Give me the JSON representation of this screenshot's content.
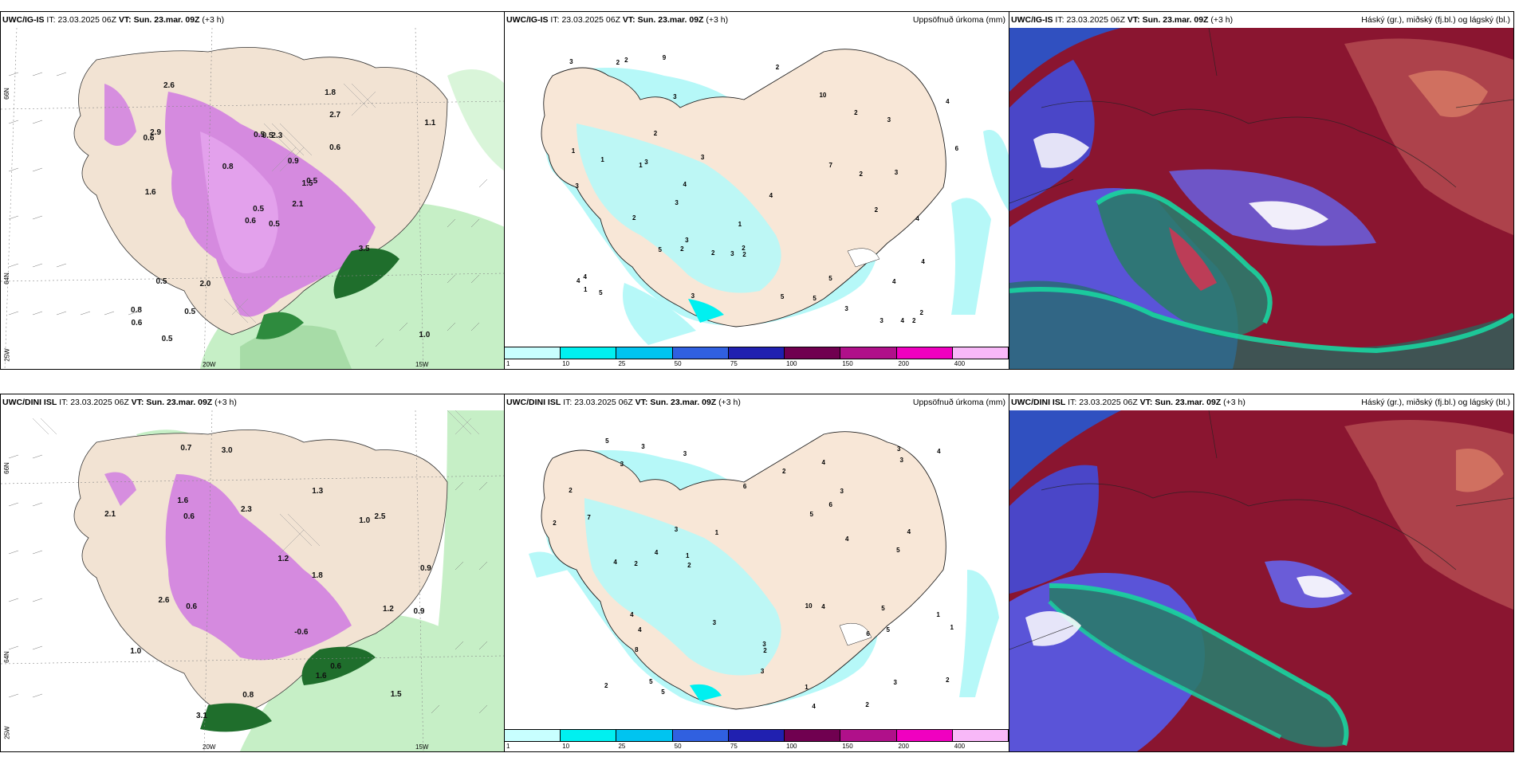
{
  "rows": [
    {
      "id": "top",
      "model": "UWC/IG-IS",
      "it_label": "IT:",
      "it_value": "23.03.2025 06Z",
      "vt_label": "VT:",
      "vt_value": "Sun. 23.mar. 09Z",
      "lead": "(+3 h)"
    },
    {
      "id": "bottom",
      "model": "UWC/DINI ISL",
      "it_label": "IT:",
      "it_value": "23.03.2025 06Z",
      "vt_label": "VT:",
      "vt_value": "Sun. 23.mar. 09Z",
      "lead": "(+3 h)"
    }
  ],
  "precip_panel": {
    "title_right": "Uppsöfnuð úrkoma (mm)"
  },
  "cloud_panel": {
    "title_right": "Háský (gr.), miðský (fj.bl.) og lágský (bl.)"
  },
  "wind_panel": {
    "lat_labels": [
      "66N",
      "64N"
    ],
    "lon_labels": [
      "25W",
      "20W",
      "15W"
    ],
    "top_values": [
      "0.5",
      "0.6",
      "0.5",
      "0.8",
      "1.5",
      "2.0",
      "1.8",
      "2.3",
      "2.7",
      "2.1",
      "2.6",
      "1.0",
      "1.6",
      "1.1",
      "0.6",
      "0.6",
      "0.5",
      "0.5",
      "0.9",
      "0.5",
      "0.8",
      "0.6",
      "0.5",
      "0.5",
      "0.5",
      "3.5",
      "2.9"
    ],
    "bottom_values": [
      "0.9",
      "1.6",
      "1.0",
      "2.3",
      "1.6",
      "3.1",
      "1.2",
      "1.5",
      "0.9",
      "1.8",
      "2.1",
      "0.7",
      "1.0",
      "1.2",
      "3.0",
      "2.6",
      "2.5",
      "0.6",
      "0.6",
      "0.6",
      "-0.6",
      "1.3",
      "0.8"
    ]
  },
  "precip_values_top": [
    "1",
    "1",
    "2",
    "2",
    "2",
    "3",
    "3",
    "3",
    "2",
    "2",
    "3",
    "2",
    "3",
    "3",
    "4",
    "5",
    "4",
    "6",
    "4",
    "3",
    "4",
    "3",
    "5",
    "5",
    "4",
    "7",
    "5",
    "4",
    "3",
    "4",
    "3",
    "2",
    "5",
    "4",
    "2",
    "1",
    "1",
    "2",
    "2",
    "3",
    "3",
    "2",
    "4",
    "3",
    "2",
    "1",
    "2",
    "2",
    "9",
    "10"
  ],
  "precip_values_bottom": [
    "1",
    "2",
    "2",
    "2",
    "3",
    "3",
    "3",
    "3",
    "4",
    "5",
    "4",
    "3",
    "2",
    "4",
    "5",
    "3",
    "8",
    "5",
    "4",
    "6",
    "7",
    "5",
    "3",
    "4",
    "4",
    "5",
    "6",
    "3",
    "4",
    "4",
    "3",
    "4",
    "2",
    "1",
    "1",
    "2",
    "2",
    "3",
    "2",
    "5",
    "5",
    "6",
    "4",
    "3",
    "2",
    "10",
    "1",
    "1"
  ],
  "colorbar": {
    "colors": [
      "#c8ffff",
      "#00f0f0",
      "#00c4f0",
      "#3060e0",
      "#2020b0",
      "#700050",
      "#b0108a",
      "#f000c0",
      "#f8b8f8"
    ],
    "labels": [
      "1",
      "10",
      "25",
      "50",
      "75",
      "100",
      "150",
      "200",
      "400"
    ]
  }
}
